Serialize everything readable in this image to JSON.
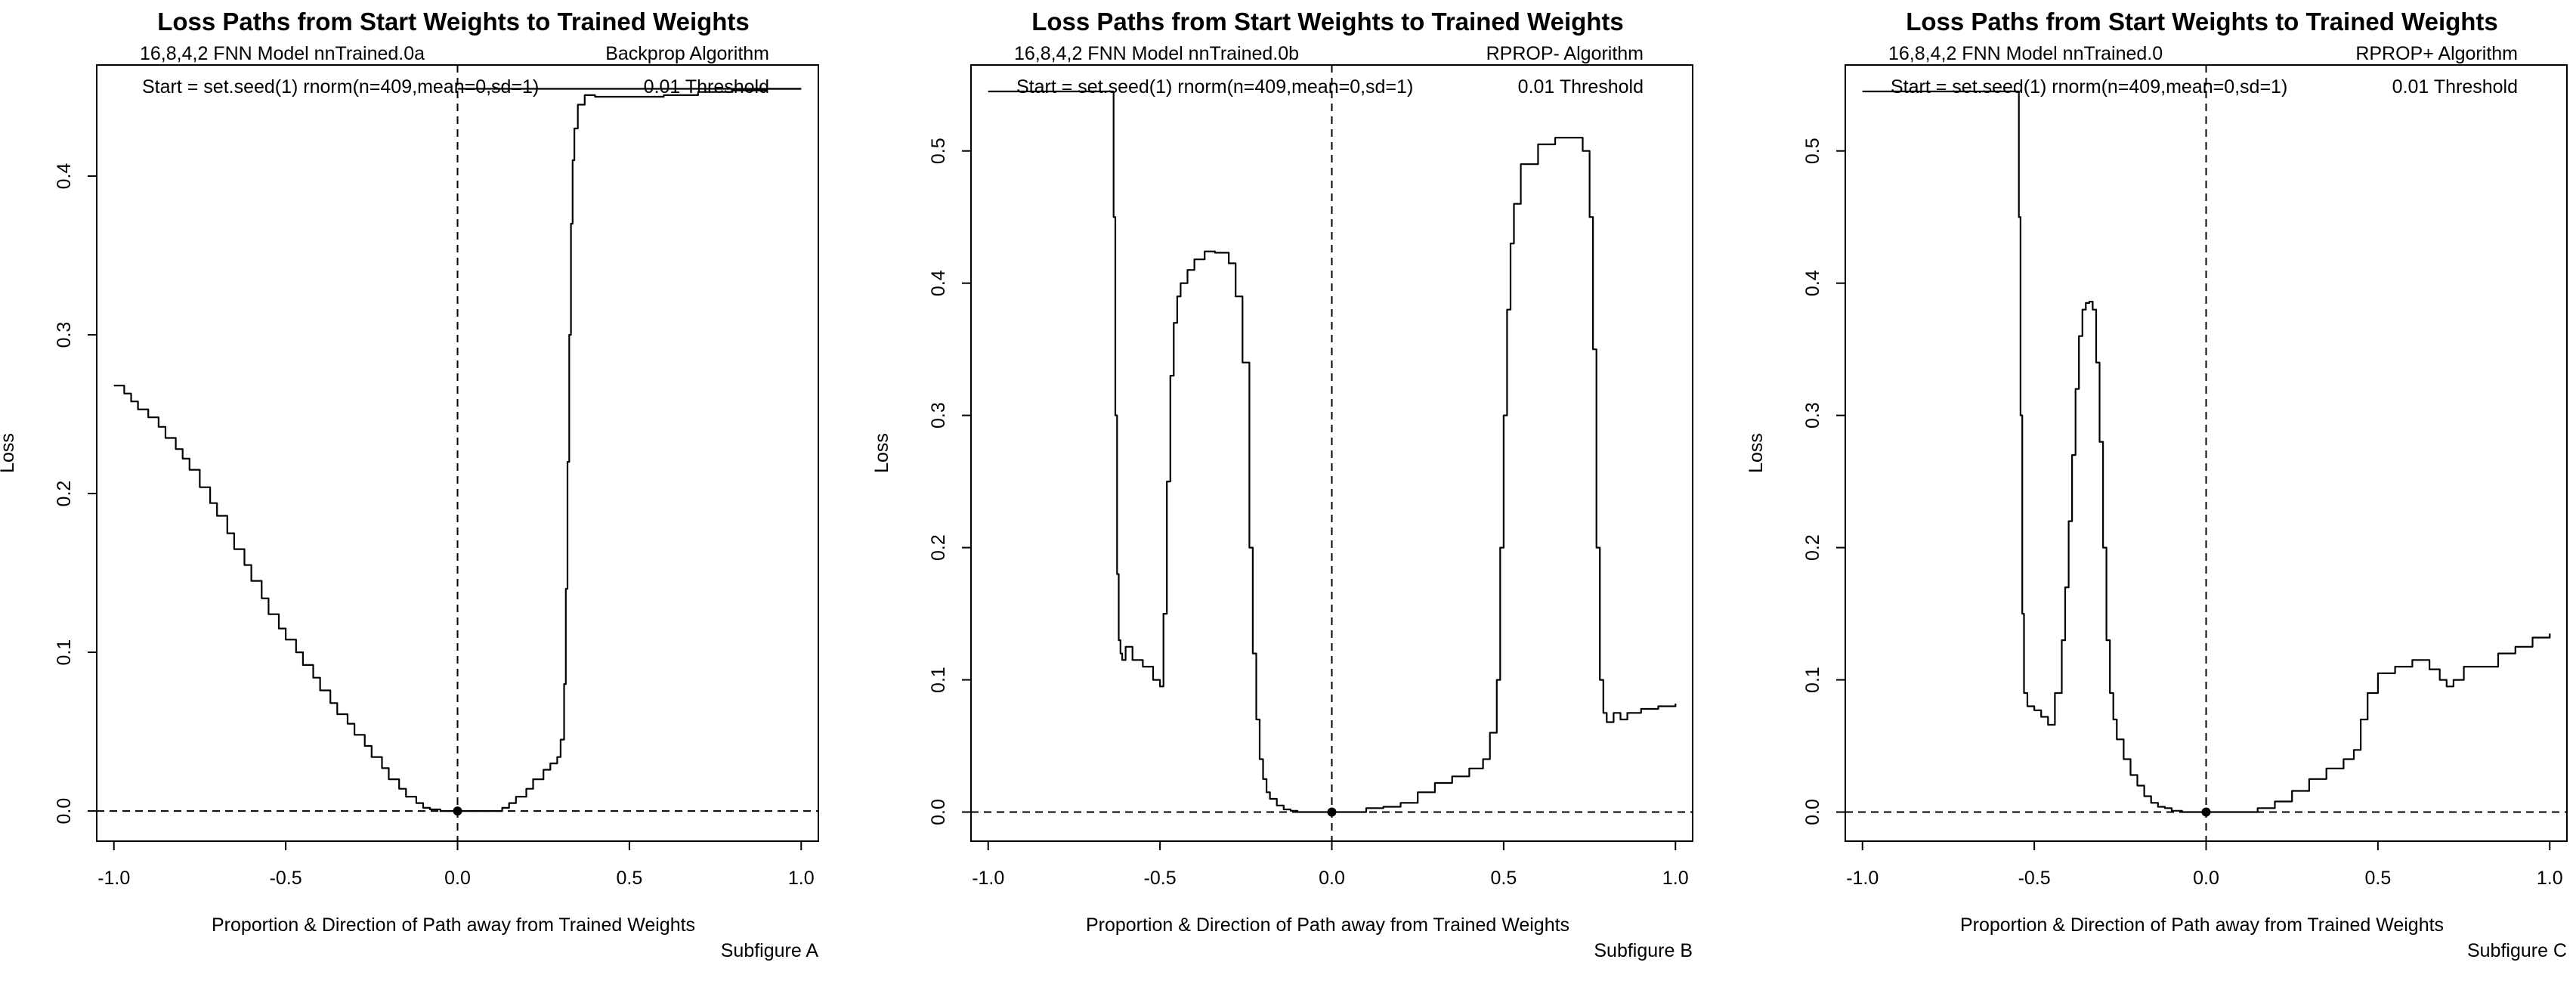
{
  "chart_data": [
    {
      "type": "line",
      "title": "Loss Paths from Start Weights to Trained Weights",
      "model_label": "16,8,4,2 FNN Model  nnTrained.0a",
      "algorithm_label": "Backprop Algorithm",
      "start_label": "Start = set.seed(1) rnorm(n=409,mean=0,sd=1)",
      "threshold_label": "0.01 Threshold",
      "xlabel": "Proportion & Direction of Path away from Trained Weights",
      "ylabel": "Loss",
      "subfigure": "Subfigure A",
      "xlim": [
        -1.05,
        1.05
      ],
      "ylim": [
        -0.019,
        0.47
      ],
      "xticks": [
        -1.0,
        -0.5,
        0.0,
        0.5,
        1.0
      ],
      "xtick_labels": [
        "-1.0",
        "-0.5",
        "0.0",
        "0.5",
        "1.0"
      ],
      "yticks": [
        0.0,
        0.1,
        0.2,
        0.3,
        0.4
      ],
      "ytick_labels": [
        "0.0",
        "0.1",
        "0.2",
        "0.3",
        "0.4"
      ],
      "reference_lines": {
        "h": 0,
        "v": 0
      },
      "marker": {
        "x": 0,
        "y": 0
      },
      "threshold_line": {
        "y": 0.455,
        "x": [
          0.0,
          1.0
        ]
      },
      "series": [
        {
          "x": [
            -1.0,
            -0.97,
            -0.95,
            -0.93,
            -0.9,
            -0.87,
            -0.85,
            -0.82,
            -0.8,
            -0.78,
            -0.75,
            -0.72,
            -0.7,
            -0.67,
            -0.65,
            -0.62,
            -0.6,
            -0.57,
            -0.55,
            -0.52,
            -0.5,
            -0.47,
            -0.45,
            -0.42,
            -0.4,
            -0.37,
            -0.35,
            -0.32,
            -0.3,
            -0.27,
            -0.25,
            -0.22,
            -0.2,
            -0.17,
            -0.15,
            -0.12,
            -0.1,
            -0.08,
            -0.05,
            0.0,
            0.03,
            0.05,
            0.08,
            0.1,
            0.13,
            0.15,
            0.17,
            0.2,
            0.22,
            0.25,
            0.27,
            0.29,
            0.3,
            0.31,
            0.315,
            0.32,
            0.325,
            0.33,
            0.335,
            0.34,
            0.35,
            0.37,
            0.4,
            0.5,
            0.6,
            0.7,
            0.8,
            0.9,
            1.0
          ],
          "values": [
            0.268,
            0.263,
            0.258,
            0.253,
            0.248,
            0.242,
            0.235,
            0.228,
            0.222,
            0.215,
            0.204,
            0.194,
            0.186,
            0.175,
            0.165,
            0.155,
            0.145,
            0.134,
            0.124,
            0.115,
            0.108,
            0.1,
            0.092,
            0.084,
            0.076,
            0.068,
            0.061,
            0.055,
            0.048,
            0.041,
            0.034,
            0.027,
            0.02,
            0.014,
            0.009,
            0.005,
            0.002,
            0.001,
            0.0,
            0.0,
            0.0,
            0.0,
            0.0,
            0.0,
            0.002,
            0.005,
            0.009,
            0.014,
            0.02,
            0.026,
            0.03,
            0.034,
            0.045,
            0.08,
            0.14,
            0.22,
            0.3,
            0.37,
            0.41,
            0.43,
            0.445,
            0.451,
            0.45,
            0.45,
            0.451,
            0.453,
            0.454,
            0.455,
            0.455
          ]
        }
      ]
    },
    {
      "type": "line",
      "title": "Loss Paths from Start Weights to Trained Weights",
      "model_label": "16,8,4,2 FNN Model  nnTrained.0b",
      "algorithm_label": "RPROP-  Algorithm",
      "start_label": "Start = set.seed(1) rnorm(n=409,mean=0,sd=1)",
      "threshold_label": "0.01 Threshold",
      "xlabel": "Proportion & Direction of Path away from Trained Weights",
      "ylabel": "Loss",
      "subfigure": "Subfigure B",
      "xlim": [
        -1.05,
        1.05
      ],
      "ylim": [
        -0.022,
        0.565
      ],
      "xticks": [
        -1.0,
        -0.5,
        0.0,
        0.5,
        1.0
      ],
      "xtick_labels": [
        "-1.0",
        "-0.5",
        "0.0",
        "0.5",
        "1.0"
      ],
      "yticks": [
        0.0,
        0.1,
        0.2,
        0.3,
        0.4,
        0.5
      ],
      "ytick_labels": [
        "0.0",
        "0.1",
        "0.2",
        "0.3",
        "0.4",
        "0.5"
      ],
      "reference_lines": {
        "h": 0,
        "v": 0
      },
      "marker": {
        "x": 0,
        "y": 0
      },
      "series": [
        {
          "x": [
            -1.0,
            -0.64,
            -0.635,
            -0.63,
            -0.625,
            -0.62,
            -0.615,
            -0.61,
            -0.6,
            -0.58,
            -0.55,
            -0.52,
            -0.5,
            -0.49,
            -0.48,
            -0.47,
            -0.46,
            -0.45,
            -0.44,
            -0.42,
            -0.4,
            -0.37,
            -0.34,
            -0.3,
            -0.28,
            -0.26,
            -0.24,
            -0.23,
            -0.22,
            -0.21,
            -0.2,
            -0.19,
            -0.18,
            -0.16,
            -0.14,
            -0.12,
            -0.1,
            -0.07,
            -0.05,
            0.0,
            0.05,
            0.1,
            0.15,
            0.2,
            0.25,
            0.3,
            0.35,
            0.4,
            0.44,
            0.46,
            0.48,
            0.49,
            0.5,
            0.51,
            0.52,
            0.53,
            0.55,
            0.6,
            0.65,
            0.7,
            0.73,
            0.75,
            0.76,
            0.77,
            0.78,
            0.79,
            0.8,
            0.82,
            0.84,
            0.86,
            0.9,
            0.95,
            1.0
          ],
          "values": [
            0.545,
            0.545,
            0.45,
            0.3,
            0.18,
            0.13,
            0.12,
            0.115,
            0.125,
            0.115,
            0.11,
            0.1,
            0.095,
            0.15,
            0.25,
            0.33,
            0.37,
            0.39,
            0.4,
            0.41,
            0.418,
            0.424,
            0.423,
            0.415,
            0.39,
            0.34,
            0.2,
            0.12,
            0.07,
            0.04,
            0.025,
            0.015,
            0.01,
            0.005,
            0.002,
            0.001,
            0.0,
            0.0,
            0.0,
            0.0,
            0.0,
            0.003,
            0.004,
            0.007,
            0.015,
            0.022,
            0.027,
            0.033,
            0.04,
            0.06,
            0.1,
            0.2,
            0.3,
            0.38,
            0.43,
            0.46,
            0.49,
            0.505,
            0.51,
            0.51,
            0.5,
            0.45,
            0.35,
            0.2,
            0.1,
            0.075,
            0.068,
            0.075,
            0.07,
            0.075,
            0.078,
            0.08,
            0.082
          ]
        }
      ]
    },
    {
      "type": "line",
      "title": "Loss Paths from Start Weights to Trained Weights",
      "model_label": "16,8,4,2 FNN Model  nnTrained.0",
      "algorithm_label": "RPROP+ Algorithm",
      "start_label": "Start = set.seed(1) rnorm(n=409,mean=0,sd=1)",
      "threshold_label": "0.01 Threshold",
      "xlabel": "Proportion & Direction of Path away from Trained Weights",
      "ylabel": "Loss",
      "subfigure": "Subfigure C",
      "xlim": [
        -1.05,
        1.05
      ],
      "ylim": [
        -0.022,
        0.565
      ],
      "xticks": [
        -1.0,
        -0.5,
        0.0,
        0.5,
        1.0
      ],
      "xtick_labels": [
        "-1.0",
        "-0.5",
        "0.0",
        "0.5",
        "1.0"
      ],
      "yticks": [
        0.0,
        0.1,
        0.2,
        0.3,
        0.4,
        0.5
      ],
      "ytick_labels": [
        "0.0",
        "0.1",
        "0.2",
        "0.3",
        "0.4",
        "0.5"
      ],
      "reference_lines": {
        "h": 0,
        "v": 0
      },
      "marker": {
        "x": 0,
        "y": 0
      },
      "series": [
        {
          "x": [
            -1.0,
            -0.55,
            -0.545,
            -0.54,
            -0.535,
            -0.53,
            -0.52,
            -0.5,
            -0.48,
            -0.46,
            -0.44,
            -0.42,
            -0.41,
            -0.4,
            -0.39,
            -0.38,
            -0.37,
            -0.36,
            -0.35,
            -0.34,
            -0.33,
            -0.32,
            -0.31,
            -0.3,
            -0.29,
            -0.28,
            -0.27,
            -0.26,
            -0.24,
            -0.22,
            -0.2,
            -0.18,
            -0.16,
            -0.14,
            -0.12,
            -0.1,
            -0.07,
            -0.05,
            0.0,
            0.05,
            0.1,
            0.15,
            0.2,
            0.25,
            0.3,
            0.35,
            0.4,
            0.43,
            0.45,
            0.47,
            0.5,
            0.55,
            0.6,
            0.65,
            0.68,
            0.7,
            0.72,
            0.75,
            0.8,
            0.85,
            0.9,
            0.95,
            1.0
          ],
          "values": [
            0.545,
            0.545,
            0.45,
            0.3,
            0.15,
            0.09,
            0.08,
            0.077,
            0.072,
            0.066,
            0.09,
            0.13,
            0.17,
            0.22,
            0.27,
            0.32,
            0.36,
            0.38,
            0.385,
            0.386,
            0.38,
            0.34,
            0.28,
            0.2,
            0.13,
            0.09,
            0.07,
            0.055,
            0.04,
            0.028,
            0.02,
            0.012,
            0.007,
            0.004,
            0.003,
            0.001,
            0.0,
            0.0,
            0.0,
            0.0,
            0.0,
            0.003,
            0.008,
            0.016,
            0.025,
            0.033,
            0.04,
            0.047,
            0.07,
            0.09,
            0.105,
            0.11,
            0.115,
            0.108,
            0.1,
            0.095,
            0.1,
            0.11,
            0.11,
            0.12,
            0.125,
            0.132,
            0.135
          ]
        }
      ]
    }
  ]
}
